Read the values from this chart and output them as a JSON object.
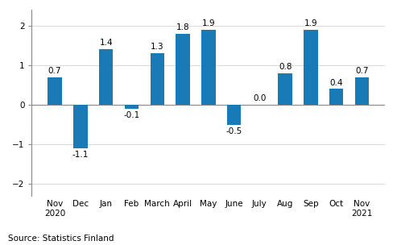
{
  "categories": [
    "Nov\n2020",
    "Dec",
    "Jan",
    "Feb",
    "March",
    "April",
    "May",
    "June",
    "July",
    "Aug",
    "Sep",
    "Oct",
    "Nov\n2021"
  ],
  "values": [
    0.7,
    -1.1,
    1.4,
    -0.1,
    1.3,
    1.8,
    1.9,
    -0.5,
    0.0,
    0.8,
    1.9,
    0.4,
    0.7
  ],
  "bar_color": "#1a7ab5",
  "ylim": [
    -2.3,
    2.4
  ],
  "yticks": [
    -2,
    -1,
    0,
    1,
    2
  ],
  "source_text": "Source: Statistics Finland",
  "background_color": "#ffffff",
  "label_fontsize": 7.5,
  "tick_fontsize": 7.5,
  "source_fontsize": 7.5,
  "bar_width": 0.55
}
